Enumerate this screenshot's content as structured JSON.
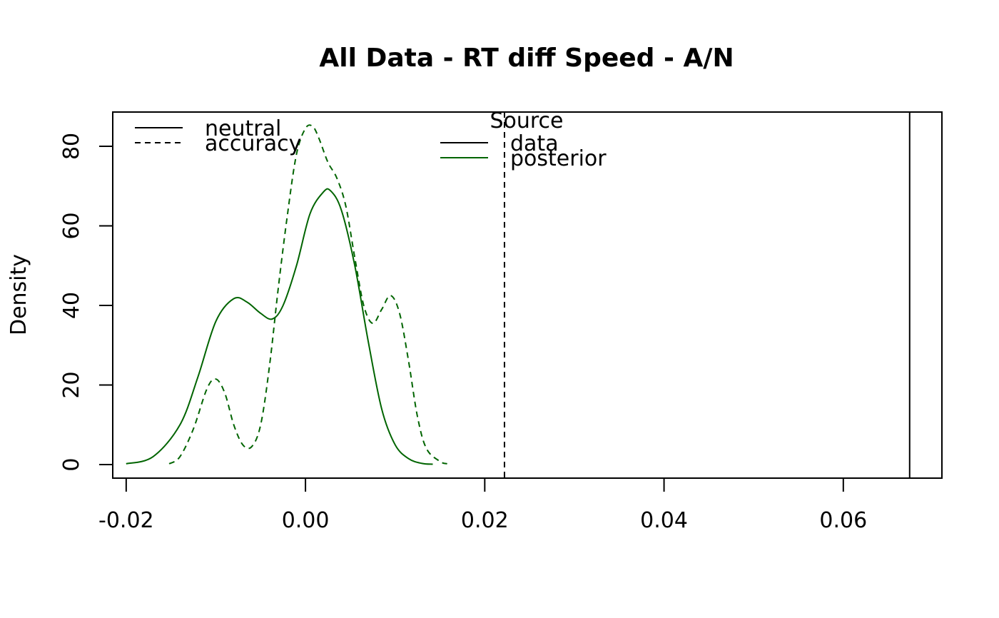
{
  "chart_data": {
    "type": "line",
    "title": "All Data - RT diff Speed - A/N",
    "xlabel": "",
    "ylabel": "Density",
    "xlim": [
      -0.0215,
      0.071
    ],
    "ylim": [
      -3.4,
      88.6
    ],
    "x_ticks": [
      -0.02,
      0.0,
      0.02,
      0.04,
      0.06
    ],
    "x_tick_labels": [
      "-0.02",
      "0.00",
      "0.02",
      "0.04",
      "0.06"
    ],
    "y_ticks": [
      0,
      20,
      40,
      60,
      80
    ],
    "y_tick_labels": [
      "0",
      "20",
      "40",
      "60",
      "80"
    ],
    "grid": false,
    "series": [
      {
        "name": "neutral",
        "source": "posterior",
        "color": "#006400",
        "dash": "solid",
        "x": [
          -0.02,
          -0.017,
          -0.014,
          -0.012,
          -0.01,
          -0.008,
          -0.0065,
          -0.005,
          -0.0037,
          -0.0025,
          -0.001,
          0.0005,
          0.002,
          0.0028,
          0.004,
          0.0055,
          0.007,
          0.0085,
          0.01,
          0.0115,
          0.013,
          0.0142
        ],
        "y": [
          0.2,
          2.0,
          10.0,
          22.0,
          36.0,
          41.7,
          40.8,
          38.0,
          36.6,
          40.0,
          50.0,
          63.0,
          68.5,
          68.8,
          64.0,
          50.0,
          31.0,
          14.0,
          5.0,
          1.5,
          0.3,
          0.1
        ]
      },
      {
        "name": "accuracy",
        "source": "posterior",
        "color": "#006400",
        "dash": "dashed",
        "x": [
          -0.0152,
          -0.014,
          -0.0125,
          -0.011,
          -0.01,
          -0.009,
          -0.008,
          -0.007,
          -0.006,
          -0.005,
          -0.004,
          -0.003,
          -0.002,
          -0.001,
          0.0,
          0.0008,
          0.0015,
          0.0025,
          0.0035,
          0.0045,
          0.0055,
          0.0065,
          0.0075,
          0.0085,
          0.0095,
          0.0105,
          0.0115,
          0.0125,
          0.0135,
          0.015,
          0.0158
        ],
        "y": [
          0.2,
          2.0,
          9.0,
          19.0,
          21.5,
          18.0,
          10.0,
          5.0,
          4.5,
          10.0,
          25.0,
          45.0,
          63.0,
          78.0,
          84.5,
          85.0,
          82.0,
          76.0,
          72.0,
          65.0,
          52.0,
          40.0,
          35.5,
          39.0,
          42.5,
          38.0,
          26.0,
          12.0,
          4.0,
          0.8,
          0.2
        ]
      },
      {
        "name": "neutral",
        "source": "data",
        "color": "#000000",
        "dash": "solid",
        "vline": 0.0674
      },
      {
        "name": "accuracy",
        "source": "data",
        "color": "#000000",
        "dash": "dashed",
        "vline": 0.0222
      }
    ],
    "legends": [
      {
        "title": "",
        "placement": "top-left",
        "entries": [
          {
            "label": "neutral",
            "dash": "solid",
            "color": "#000000"
          },
          {
            "label": "accuracy",
            "dash": "dashed",
            "color": "#000000"
          }
        ]
      },
      {
        "title": "Source",
        "placement": "top-center",
        "entries": [
          {
            "label": "data",
            "dash": "solid",
            "color": "#000000"
          },
          {
            "label": "posterior",
            "dash": "solid",
            "color": "#006400"
          }
        ]
      }
    ]
  }
}
